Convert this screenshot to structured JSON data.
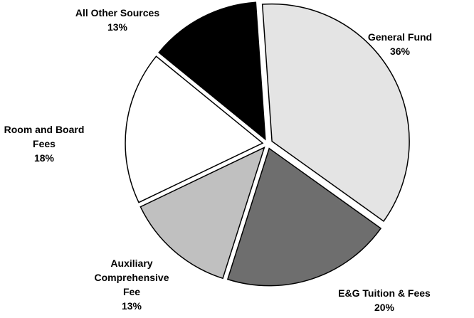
{
  "chart_data": {
    "type": "pie",
    "categories": [
      "General Fund",
      "E&G Tuition & Fees",
      "Auxiliary Comprehensive Fee",
      "Room and Board Fees",
      "All Other Sources"
    ],
    "values": [
      36,
      20,
      13,
      18,
      13
    ],
    "value_labels": [
      "36%",
      "20%",
      "13%",
      "18%",
      "13%"
    ],
    "colors": [
      "#e4e4e4",
      "#6e6e6e",
      "#c0c0c0",
      "#ffffff",
      "#000000"
    ]
  }
}
